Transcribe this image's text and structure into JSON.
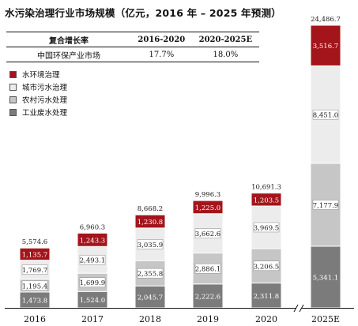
{
  "title": "水污染治理行业市场规模（亿元，2016 年 – 2025 年预测）",
  "cagr_table": {
    "header": [
      "复合增长率",
      "2016-2020",
      "2020-2025E"
    ],
    "row": [
      "中国环保产业市场",
      "17.7%",
      "18.0%"
    ]
  },
  "colors": {
    "工业废水处理": "#7b7b7b",
    "农村污水处理": "#c6c6c6",
    "城市污水治理": "#ececec",
    "水环境治理": "#a3151b"
  },
  "chart_data": {
    "type": "bar",
    "stacked": true,
    "categories": [
      "2016",
      "2017",
      "2018",
      "2019",
      "2020",
      "2025E"
    ],
    "series": [
      {
        "name": "工业废水处理",
        "values": [
          1473.8,
          1524.0,
          2045.7,
          2222.6,
          2311.8,
          5341.1
        ]
      },
      {
        "name": "农村污水处理",
        "values": [
          1195.4,
          1699.9,
          2355.8,
          2886.1,
          3206.5,
          7177.9
        ]
      },
      {
        "name": "城市污水治理",
        "values": [
          1769.7,
          2493.1,
          3035.9,
          3662.6,
          3969.5,
          8451.0
        ]
      },
      {
        "name": "水环境治理",
        "values": [
          1135.7,
          1243.3,
          1230.8,
          1225.0,
          1203.5,
          3516.7
        ]
      }
    ],
    "series_labels": [
      [
        "1,473.8",
        "1,524.0",
        "2,045.7",
        "2,222.6",
        "2,311.8",
        "5,341.1"
      ],
      [
        "1,195.4",
        "1,699.9",
        "2,355.8",
        "2,886.1",
        "3,206.5",
        "7,177.9"
      ],
      [
        "1,769.7",
        "2,493.1",
        "3,035.9",
        "3,662.6",
        "3,969.5",
        "8,451.0"
      ],
      [
        "1,135.7",
        "1,243.3",
        "1,230.8",
        "1,225.0",
        "1,203.5",
        "3,516.7"
      ]
    ],
    "totals": [
      "5,574.6",
      "6,960.3",
      "8,668.2",
      "9,996.3",
      "10,691.3",
      "24,486.7"
    ],
    "axis_break_before": "2025E",
    "legend_position": "top-left"
  }
}
